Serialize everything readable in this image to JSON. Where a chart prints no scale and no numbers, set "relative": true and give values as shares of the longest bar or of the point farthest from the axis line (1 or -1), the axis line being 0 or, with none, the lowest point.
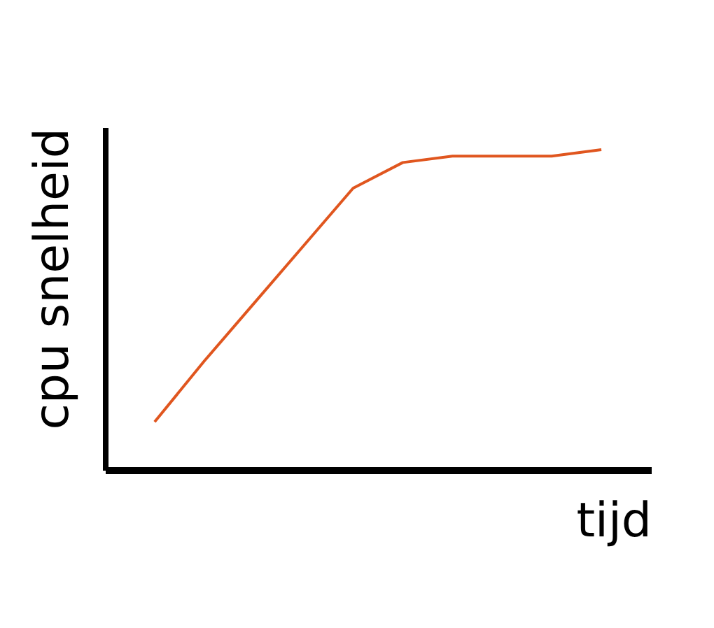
{
  "chart_data": {
    "type": "line",
    "xlabel": "tijd",
    "ylabel": "cpu snelheid",
    "relative": true,
    "tick_labels": false,
    "grid": false,
    "categories": [
      null,
      null,
      null,
      null,
      null,
      null,
      null,
      null,
      null,
      null
    ],
    "series": [
      {
        "color": "#e0561f",
        "values": [
          0.15,
          0.34,
          0.52,
          0.7,
          0.88,
          0.96,
          0.98,
          0.98,
          0.98,
          1
        ]
      }
    ]
  }
}
